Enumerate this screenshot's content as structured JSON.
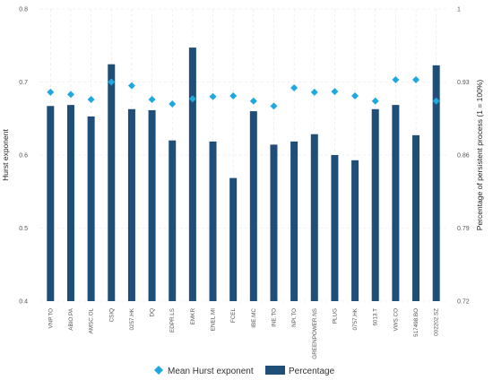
{
  "chart_data": {
    "type": "bar",
    "categories": [
      "VNP.TO",
      "ABIO.PA",
      "AMSC.OL",
      "CSIQ",
      "0257.HK",
      "DQ",
      "EDPR.LS",
      "EMKR",
      "ENEL.MI",
      "FCEL",
      "IBE.MC",
      "INE.TO",
      "NPI.TO",
      "GREENPOWER.NS",
      "PLUG",
      "0757.HK",
      "6013.T",
      "VWS.CO",
      "517498.BO",
      "002202.SZ"
    ],
    "series": [
      {
        "name": "Mean Hurst exponent",
        "type": "scatter",
        "axis": "left",
        "color": "#1fa8e0",
        "values": [
          0.686,
          0.683,
          0.676,
          0.7,
          0.695,
          0.676,
          0.67,
          0.677,
          0.68,
          0.681,
          0.674,
          0.667,
          0.692,
          0.686,
          0.687,
          0.681,
          0.674,
          0.703,
          0.703,
          0.674
        ]
      },
      {
        "name": "Percentage",
        "type": "bar",
        "axis": "right",
        "color": "#1f4e79",
        "values": [
          0.907,
          0.908,
          0.897,
          0.947,
          0.904,
          0.903,
          0.874,
          0.963,
          0.873,
          0.838,
          0.902,
          0.87,
          0.873,
          0.88,
          0.86,
          0.855,
          0.904,
          0.908,
          0.879,
          0.946
        ]
      }
    ],
    "ylabel": "Hurst exponent",
    "ylabel_right": "Percentage of persistent process (1 = 100%)",
    "ylim": [
      0.4,
      0.8
    ],
    "ylim_right": [
      0.72,
      1.0
    ],
    "yticks": [
      "0.4",
      "0.5",
      "0.6",
      "0.7",
      "0.8"
    ],
    "yticks_right": [
      "0.72",
      "0.79",
      "0.86",
      "0.93",
      "1"
    ],
    "grid": true,
    "legend_position": "bottom-center"
  }
}
